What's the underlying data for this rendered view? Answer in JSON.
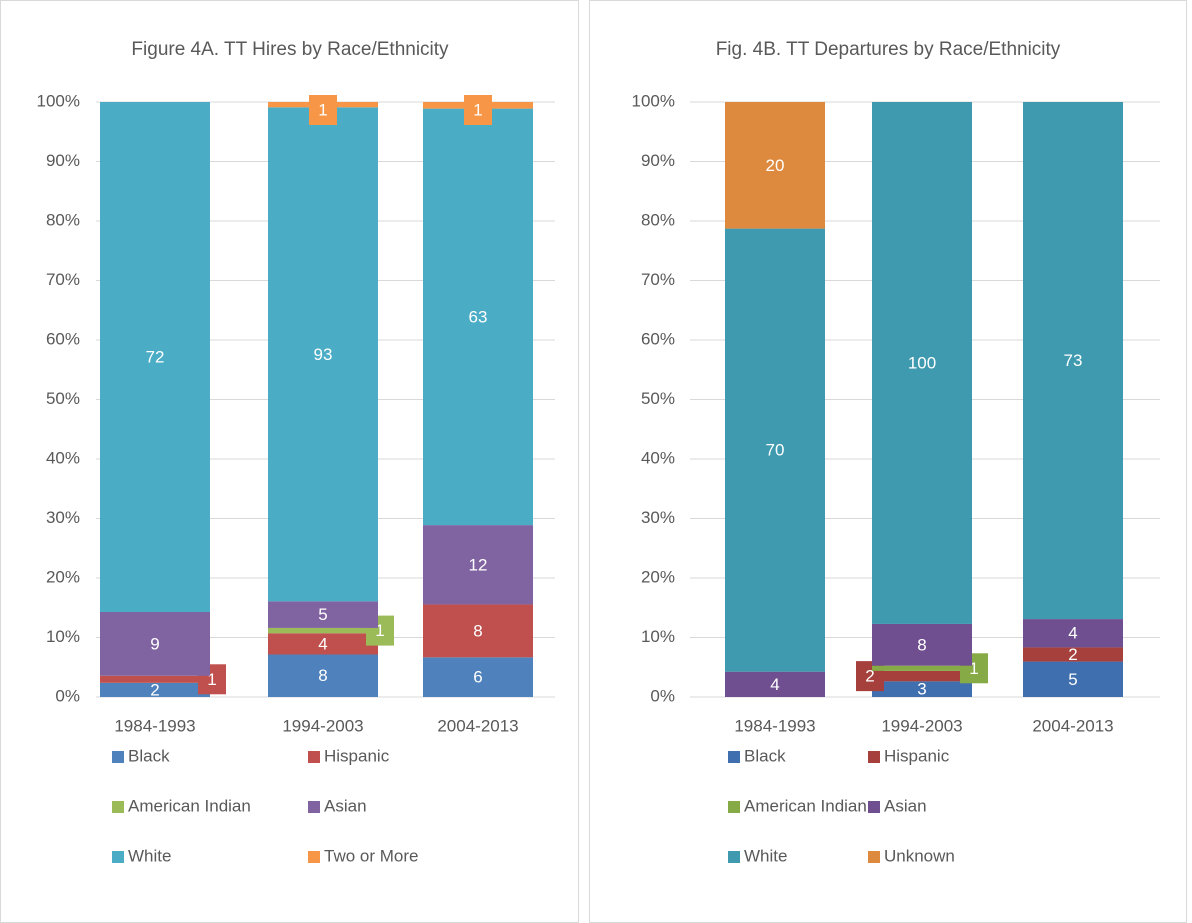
{
  "chart_data": [
    {
      "type": "stacked_bar_100",
      "title": "Figure 4A. TT Hires by Race/Ethnicity",
      "categories": [
        "1984-1993",
        "1994-2003",
        "2004-2013"
      ],
      "series": [
        {
          "name": "Black",
          "color": "#4f81bd",
          "values": [
            2,
            8,
            6
          ]
        },
        {
          "name": "Hispanic",
          "color": "#c0504d",
          "values": [
            1,
            4,
            8
          ]
        },
        {
          "name": "American Indian",
          "color": "#9bbb59",
          "values": [
            null,
            1,
            null
          ]
        },
        {
          "name": "Asian",
          "color": "#8064a2",
          "values": [
            9,
            5,
            12
          ]
        },
        {
          "name": "White",
          "color": "#4bacc6",
          "values": [
            72,
            93,
            63
          ]
        },
        {
          "name": "Two or More",
          "color": "#f79646",
          "values": [
            null,
            1,
            1
          ]
        }
      ],
      "ylim": [
        0,
        100
      ],
      "yticks": [
        {
          "value": 0,
          "label": "0%"
        },
        {
          "value": 10,
          "label": "10%"
        },
        {
          "value": 20,
          "label": "20%"
        },
        {
          "value": 30,
          "label": "30%"
        },
        {
          "value": 40,
          "label": "40%"
        },
        {
          "value": 50,
          "label": "50%"
        },
        {
          "value": 60,
          "label": "60%"
        },
        {
          "value": 70,
          "label": "70%"
        },
        {
          "value": 80,
          "label": "80%"
        },
        {
          "value": 90,
          "label": "90%"
        },
        {
          "value": 100,
          "label": "100%"
        }
      ],
      "grid": true,
      "legend": "bottom"
    },
    {
      "type": "stacked_bar_100",
      "title": "Fig. 4B. TT Departures by Race/Ethnicity",
      "categories": [
        "1984-1993",
        "1994-2003",
        "2004-2013"
      ],
      "series": [
        {
          "name": "Black",
          "color": "#3f6faf",
          "values": [
            null,
            3,
            5
          ]
        },
        {
          "name": "Hispanic",
          "color": "#a5403c",
          "values": [
            null,
            2,
            2
          ]
        },
        {
          "name": "American Indian",
          "color": "#86aa45",
          "values": [
            null,
            1,
            null
          ]
        },
        {
          "name": "Asian",
          "color": "#6f4f8f",
          "values": [
            4,
            8,
            4
          ]
        },
        {
          "name": "White",
          "color": "#3f9ab0",
          "values": [
            70,
            100,
            73
          ]
        },
        {
          "name": "Unknown",
          "color": "#de8a3e",
          "values": [
            20,
            null,
            null
          ]
        }
      ],
      "ylim": [
        0,
        100
      ],
      "yticks": [
        {
          "value": 0,
          "label": "0%"
        },
        {
          "value": 10,
          "label": "10%"
        },
        {
          "value": 20,
          "label": "20%"
        },
        {
          "value": 30,
          "label": "30%"
        },
        {
          "value": 40,
          "label": "40%"
        },
        {
          "value": 50,
          "label": "50%"
        },
        {
          "value": 60,
          "label": "60%"
        },
        {
          "value": 70,
          "label": "70%"
        },
        {
          "value": 80,
          "label": "80%"
        },
        {
          "value": 90,
          "label": "90%"
        },
        {
          "value": 100,
          "label": "100%"
        }
      ],
      "grid": true,
      "legend": "bottom"
    }
  ]
}
